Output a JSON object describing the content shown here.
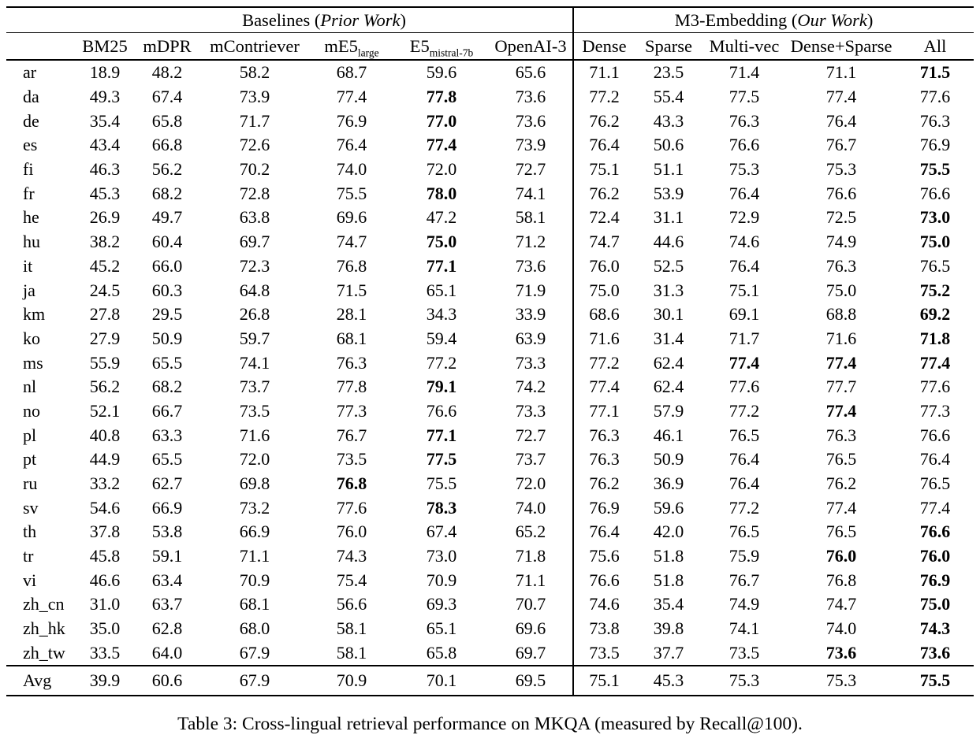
{
  "caption": {
    "text": "Table 3: Cross-lingual retrieval performance on MKQA (measured by Recall@100)."
  },
  "table": {
    "groups": [
      {
        "prefix": "Baselines (",
        "italic": "Prior Work",
        "suffix": ")"
      },
      {
        "prefix": "M3-Embedding (",
        "italic": "Our Work",
        "suffix": ")"
      }
    ],
    "columns": [
      {
        "label": "BM25",
        "sub": ""
      },
      {
        "label": "mDPR",
        "sub": ""
      },
      {
        "label": "mContriever",
        "sub": ""
      },
      {
        "label": "mE5",
        "sub": "large"
      },
      {
        "label": "E5",
        "sub": "mistral-7b"
      },
      {
        "label": "OpenAI-3",
        "sub": ""
      },
      {
        "label": "Dense",
        "sub": ""
      },
      {
        "label": "Sparse",
        "sub": ""
      },
      {
        "label": "Multi-vec",
        "sub": ""
      },
      {
        "label": "Dense+Sparse",
        "sub": ""
      },
      {
        "label": "All",
        "sub": ""
      }
    ],
    "rows": [
      {
        "lang": "ar",
        "values": [
          "18.9",
          "48.2",
          "58.2",
          "68.7",
          "59.6",
          "65.6",
          "71.1",
          "23.5",
          "71.4",
          "71.1",
          "71.5"
        ],
        "bold": [
          10
        ]
      },
      {
        "lang": "da",
        "values": [
          "49.3",
          "67.4",
          "73.9",
          "77.4",
          "77.8",
          "73.6",
          "77.2",
          "55.4",
          "77.5",
          "77.4",
          "77.6"
        ],
        "bold": [
          4
        ]
      },
      {
        "lang": "de",
        "values": [
          "35.4",
          "65.8",
          "71.7",
          "76.9",
          "77.0",
          "73.6",
          "76.2",
          "43.3",
          "76.3",
          "76.4",
          "76.3"
        ],
        "bold": [
          4
        ]
      },
      {
        "lang": "es",
        "values": [
          "43.4",
          "66.8",
          "72.6",
          "76.4",
          "77.4",
          "73.9",
          "76.4",
          "50.6",
          "76.6",
          "76.7",
          "76.9"
        ],
        "bold": [
          4
        ]
      },
      {
        "lang": "fi",
        "values": [
          "46.3",
          "56.2",
          "70.2",
          "74.0",
          "72.0",
          "72.7",
          "75.1",
          "51.1",
          "75.3",
          "75.3",
          "75.5"
        ],
        "bold": [
          10
        ]
      },
      {
        "lang": "fr",
        "values": [
          "45.3",
          "68.2",
          "72.8",
          "75.5",
          "78.0",
          "74.1",
          "76.2",
          "53.9",
          "76.4",
          "76.6",
          "76.6"
        ],
        "bold": [
          4
        ]
      },
      {
        "lang": "he",
        "values": [
          "26.9",
          "49.7",
          "63.8",
          "69.6",
          "47.2",
          "58.1",
          "72.4",
          "31.1",
          "72.9",
          "72.5",
          "73.0"
        ],
        "bold": [
          10
        ]
      },
      {
        "lang": "hu",
        "values": [
          "38.2",
          "60.4",
          "69.7",
          "74.7",
          "75.0",
          "71.2",
          "74.7",
          "44.6",
          "74.6",
          "74.9",
          "75.0"
        ],
        "bold": [
          4,
          10
        ]
      },
      {
        "lang": "it",
        "values": [
          "45.2",
          "66.0",
          "72.3",
          "76.8",
          "77.1",
          "73.6",
          "76.0",
          "52.5",
          "76.4",
          "76.3",
          "76.5"
        ],
        "bold": [
          4
        ]
      },
      {
        "lang": "ja",
        "values": [
          "24.5",
          "60.3",
          "64.8",
          "71.5",
          "65.1",
          "71.9",
          "75.0",
          "31.3",
          "75.1",
          "75.0",
          "75.2"
        ],
        "bold": [
          10
        ]
      },
      {
        "lang": "km",
        "values": [
          "27.8",
          "29.5",
          "26.8",
          "28.1",
          "34.3",
          "33.9",
          "68.6",
          "30.1",
          "69.1",
          "68.8",
          "69.2"
        ],
        "bold": [
          10
        ]
      },
      {
        "lang": "ko",
        "values": [
          "27.9",
          "50.9",
          "59.7",
          "68.1",
          "59.4",
          "63.9",
          "71.6",
          "31.4",
          "71.7",
          "71.6",
          "71.8"
        ],
        "bold": [
          10
        ]
      },
      {
        "lang": "ms",
        "values": [
          "55.9",
          "65.5",
          "74.1",
          "76.3",
          "77.2",
          "73.3",
          "77.2",
          "62.4",
          "77.4",
          "77.4",
          "77.4"
        ],
        "bold": [
          8,
          9,
          10
        ]
      },
      {
        "lang": "nl",
        "values": [
          "56.2",
          "68.2",
          "73.7",
          "77.8",
          "79.1",
          "74.2",
          "77.4",
          "62.4",
          "77.6",
          "77.7",
          "77.6"
        ],
        "bold": [
          4
        ]
      },
      {
        "lang": "no",
        "values": [
          "52.1",
          "66.7",
          "73.5",
          "77.3",
          "76.6",
          "73.3",
          "77.1",
          "57.9",
          "77.2",
          "77.4",
          "77.3"
        ],
        "bold": [
          9
        ]
      },
      {
        "lang": "pl",
        "values": [
          "40.8",
          "63.3",
          "71.6",
          "76.7",
          "77.1",
          "72.7",
          "76.3",
          "46.1",
          "76.5",
          "76.3",
          "76.6"
        ],
        "bold": [
          4
        ]
      },
      {
        "lang": "pt",
        "values": [
          "44.9",
          "65.5",
          "72.0",
          "73.5",
          "77.5",
          "73.7",
          "76.3",
          "50.9",
          "76.4",
          "76.5",
          "76.4"
        ],
        "bold": [
          4
        ]
      },
      {
        "lang": "ru",
        "values": [
          "33.2",
          "62.7",
          "69.8",
          "76.8",
          "75.5",
          "72.0",
          "76.2",
          "36.9",
          "76.4",
          "76.2",
          "76.5"
        ],
        "bold": [
          3
        ]
      },
      {
        "lang": "sv",
        "values": [
          "54.6",
          "66.9",
          "73.2",
          "77.6",
          "78.3",
          "74.0",
          "76.9",
          "59.6",
          "77.2",
          "77.4",
          "77.4"
        ],
        "bold": [
          4
        ]
      },
      {
        "lang": "th",
        "values": [
          "37.8",
          "53.8",
          "66.9",
          "76.0",
          "67.4",
          "65.2",
          "76.4",
          "42.0",
          "76.5",
          "76.5",
          "76.6"
        ],
        "bold": [
          10
        ]
      },
      {
        "lang": "tr",
        "values": [
          "45.8",
          "59.1",
          "71.1",
          "74.3",
          "73.0",
          "71.8",
          "75.6",
          "51.8",
          "75.9",
          "76.0",
          "76.0"
        ],
        "bold": [
          9,
          10
        ]
      },
      {
        "lang": "vi",
        "values": [
          "46.6",
          "63.4",
          "70.9",
          "75.4",
          "70.9",
          "71.1",
          "76.6",
          "51.8",
          "76.7",
          "76.8",
          "76.9"
        ],
        "bold": [
          10
        ]
      },
      {
        "lang": "zh_cn",
        "values": [
          "31.0",
          "63.7",
          "68.1",
          "56.6",
          "69.3",
          "70.7",
          "74.6",
          "35.4",
          "74.9",
          "74.7",
          "75.0"
        ],
        "bold": [
          10
        ]
      },
      {
        "lang": "zh_hk",
        "values": [
          "35.0",
          "62.8",
          "68.0",
          "58.1",
          "65.1",
          "69.6",
          "73.8",
          "39.8",
          "74.1",
          "74.0",
          "74.3"
        ],
        "bold": [
          10
        ]
      },
      {
        "lang": "zh_tw",
        "values": [
          "33.5",
          "64.0",
          "67.9",
          "58.1",
          "65.8",
          "69.7",
          "73.5",
          "37.7",
          "73.5",
          "73.6",
          "73.6"
        ],
        "bold": [
          9,
          10
        ]
      },
      {
        "lang": "Avg",
        "values": [
          "39.9",
          "60.6",
          "67.9",
          "70.9",
          "70.1",
          "69.5",
          "75.1",
          "45.3",
          "75.3",
          "75.3",
          "75.5"
        ],
        "bold": [
          10
        ]
      }
    ]
  }
}
